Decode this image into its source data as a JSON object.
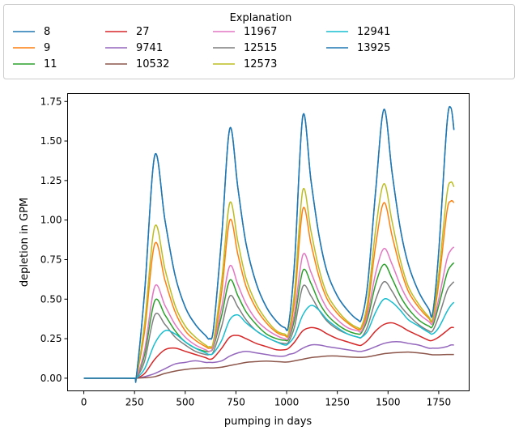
{
  "chart_data": {
    "type": "line",
    "xlabel": "pumping in days",
    "ylabel": "depletion in GPM",
    "xlim": [
      -80,
      1900
    ],
    "ylim": [
      -0.08,
      1.8
    ],
    "x_ticks": [
      0,
      250,
      500,
      750,
      1000,
      1250,
      1500,
      1750
    ],
    "y_ticks": [
      0.0,
      0.25,
      0.5,
      0.75,
      1.0,
      1.25,
      1.5,
      1.75
    ],
    "x_tick_labels": [
      "0",
      "250",
      "500",
      "750",
      "1000",
      "1250",
      "1500",
      "1750"
    ],
    "y_tick_labels": [
      "0.00",
      "0.25",
      "0.50",
      "0.75",
      "1.00",
      "1.25",
      "1.50",
      "1.75"
    ],
    "grid": false,
    "legend": {
      "title": "Explanation",
      "placement": "top",
      "columns": 5
    },
    "x": [
      0,
      100,
      200,
      250,
      260,
      300,
      350,
      400,
      450,
      500,
      550,
      600,
      620,
      640,
      680,
      720,
      760,
      800,
      850,
      900,
      950,
      990,
      1010,
      1040,
      1080,
      1120,
      1160,
      1200,
      1250,
      1300,
      1350,
      1370,
      1400,
      1440,
      1480,
      1520,
      1560,
      1600,
      1650,
      1700,
      1720,
      1750,
      1790,
      1810,
      1825
    ],
    "series": [
      {
        "name": "8",
        "color": "#1f77b4",
        "values": [
          0,
          0,
          0,
          0,
          0.02,
          0.55,
          1.41,
          1.0,
          0.65,
          0.45,
          0.34,
          0.27,
          0.25,
          0.32,
          0.9,
          1.58,
          1.2,
          0.85,
          0.6,
          0.45,
          0.36,
          0.32,
          0.34,
          0.75,
          1.66,
          1.25,
          0.9,
          0.67,
          0.52,
          0.43,
          0.37,
          0.38,
          0.6,
          1.2,
          1.7,
          1.3,
          0.95,
          0.72,
          0.55,
          0.44,
          0.41,
          0.8,
          1.6,
          1.71,
          1.57
        ]
      },
      {
        "name": "9",
        "color": "#ff7f0e",
        "values": [
          0,
          0,
          0,
          0,
          0.01,
          0.3,
          0.85,
          0.62,
          0.42,
          0.3,
          0.24,
          0.2,
          0.19,
          0.23,
          0.55,
          1.0,
          0.78,
          0.58,
          0.44,
          0.35,
          0.29,
          0.27,
          0.28,
          0.5,
          1.07,
          0.85,
          0.64,
          0.5,
          0.41,
          0.35,
          0.31,
          0.32,
          0.45,
          0.85,
          1.11,
          0.9,
          0.7,
          0.55,
          0.45,
          0.38,
          0.37,
          0.6,
          1.05,
          1.12,
          1.11
        ]
      },
      {
        "name": "11",
        "color": "#2ca02c",
        "values": [
          0,
          0,
          0,
          0,
          0.005,
          0.15,
          0.49,
          0.4,
          0.3,
          0.23,
          0.19,
          0.17,
          0.17,
          0.2,
          0.4,
          0.62,
          0.52,
          0.42,
          0.34,
          0.28,
          0.25,
          0.24,
          0.25,
          0.38,
          0.68,
          0.6,
          0.48,
          0.4,
          0.34,
          0.3,
          0.28,
          0.29,
          0.38,
          0.6,
          0.72,
          0.63,
          0.52,
          0.44,
          0.37,
          0.33,
          0.33,
          0.46,
          0.66,
          0.71,
          0.73
        ]
      },
      {
        "name": "27",
        "color": "#d62728",
        "values": [
          0,
          0,
          0,
          0,
          0,
          0.03,
          0.12,
          0.18,
          0.19,
          0.17,
          0.15,
          0.13,
          0.12,
          0.13,
          0.19,
          0.26,
          0.27,
          0.25,
          0.22,
          0.2,
          0.18,
          0.18,
          0.19,
          0.23,
          0.3,
          0.32,
          0.31,
          0.28,
          0.25,
          0.23,
          0.21,
          0.21,
          0.24,
          0.3,
          0.34,
          0.35,
          0.33,
          0.3,
          0.27,
          0.24,
          0.24,
          0.26,
          0.3,
          0.32,
          0.32
        ]
      },
      {
        "name": "9741",
        "color": "#9467bd",
        "values": [
          0,
          0,
          0,
          0,
          0,
          0.01,
          0.03,
          0.06,
          0.09,
          0.1,
          0.11,
          0.1,
          0.1,
          0.1,
          0.11,
          0.14,
          0.16,
          0.17,
          0.16,
          0.15,
          0.14,
          0.14,
          0.15,
          0.16,
          0.19,
          0.21,
          0.21,
          0.2,
          0.19,
          0.18,
          0.17,
          0.17,
          0.18,
          0.2,
          0.22,
          0.23,
          0.23,
          0.22,
          0.21,
          0.19,
          0.19,
          0.19,
          0.2,
          0.21,
          0.21
        ]
      },
      {
        "name": "10532",
        "color": "#8c564b",
        "values": [
          0,
          0,
          0,
          0,
          0,
          0.003,
          0.01,
          0.03,
          0.045,
          0.055,
          0.062,
          0.065,
          0.065,
          0.065,
          0.07,
          0.08,
          0.09,
          0.1,
          0.105,
          0.108,
          0.105,
          0.102,
          0.103,
          0.11,
          0.12,
          0.13,
          0.135,
          0.14,
          0.14,
          0.135,
          0.132,
          0.132,
          0.135,
          0.145,
          0.155,
          0.16,
          0.163,
          0.165,
          0.16,
          0.152,
          0.148,
          0.148,
          0.15,
          0.15,
          0.15
        ]
      },
      {
        "name": "11967",
        "color": "#e377c2",
        "values": [
          0,
          0,
          0,
          0,
          0.005,
          0.18,
          0.58,
          0.46,
          0.34,
          0.26,
          0.21,
          0.18,
          0.17,
          0.21,
          0.45,
          0.71,
          0.59,
          0.47,
          0.37,
          0.31,
          0.27,
          0.25,
          0.26,
          0.42,
          0.78,
          0.67,
          0.54,
          0.44,
          0.37,
          0.32,
          0.3,
          0.3,
          0.41,
          0.67,
          0.82,
          0.72,
          0.59,
          0.49,
          0.41,
          0.36,
          0.35,
          0.5,
          0.75,
          0.81,
          0.83
        ]
      },
      {
        "name": "12515",
        "color": "#7f7f7f",
        "values": [
          0,
          0,
          0,
          0,
          0.003,
          0.11,
          0.4,
          0.34,
          0.26,
          0.21,
          0.17,
          0.15,
          0.15,
          0.17,
          0.33,
          0.52,
          0.45,
          0.37,
          0.3,
          0.26,
          0.23,
          0.22,
          0.23,
          0.33,
          0.58,
          0.52,
          0.43,
          0.36,
          0.31,
          0.28,
          0.26,
          0.26,
          0.33,
          0.5,
          0.61,
          0.55,
          0.46,
          0.4,
          0.34,
          0.3,
          0.3,
          0.39,
          0.55,
          0.59,
          0.61
        ]
      },
      {
        "name": "12573",
        "color": "#bcbd22",
        "values": [
          0,
          0,
          0,
          0,
          0.01,
          0.35,
          0.96,
          0.69,
          0.46,
          0.33,
          0.26,
          0.21,
          0.2,
          0.24,
          0.62,
          1.11,
          0.86,
          0.63,
          0.47,
          0.37,
          0.3,
          0.28,
          0.29,
          0.56,
          1.19,
          0.93,
          0.69,
          0.53,
          0.43,
          0.36,
          0.32,
          0.33,
          0.49,
          0.95,
          1.23,
          0.99,
          0.75,
          0.58,
          0.47,
          0.39,
          0.38,
          0.66,
          1.16,
          1.24,
          1.21
        ]
      },
      {
        "name": "12941",
        "color": "#17becf",
        "values": [
          0,
          0,
          0,
          0,
          0.002,
          0.06,
          0.22,
          0.3,
          0.28,
          0.23,
          0.19,
          0.16,
          0.15,
          0.16,
          0.24,
          0.37,
          0.4,
          0.35,
          0.3,
          0.26,
          0.23,
          0.21,
          0.22,
          0.27,
          0.4,
          0.46,
          0.43,
          0.37,
          0.32,
          0.28,
          0.26,
          0.26,
          0.3,
          0.42,
          0.5,
          0.48,
          0.43,
          0.37,
          0.33,
          0.29,
          0.28,
          0.32,
          0.42,
          0.46,
          0.48
        ]
      },
      {
        "name": "13925",
        "color": "#1f77b4",
        "values": [
          0,
          0,
          0,
          0,
          0.02,
          0.55,
          1.41,
          1.0,
          0.65,
          0.45,
          0.34,
          0.27,
          0.25,
          0.32,
          0.9,
          1.58,
          1.2,
          0.85,
          0.6,
          0.45,
          0.36,
          0.32,
          0.34,
          0.75,
          1.66,
          1.25,
          0.9,
          0.67,
          0.52,
          0.43,
          0.37,
          0.38,
          0.6,
          1.2,
          1.7,
          1.3,
          0.95,
          0.72,
          0.55,
          0.44,
          0.41,
          0.8,
          1.6,
          1.71,
          1.57
        ]
      }
    ]
  }
}
